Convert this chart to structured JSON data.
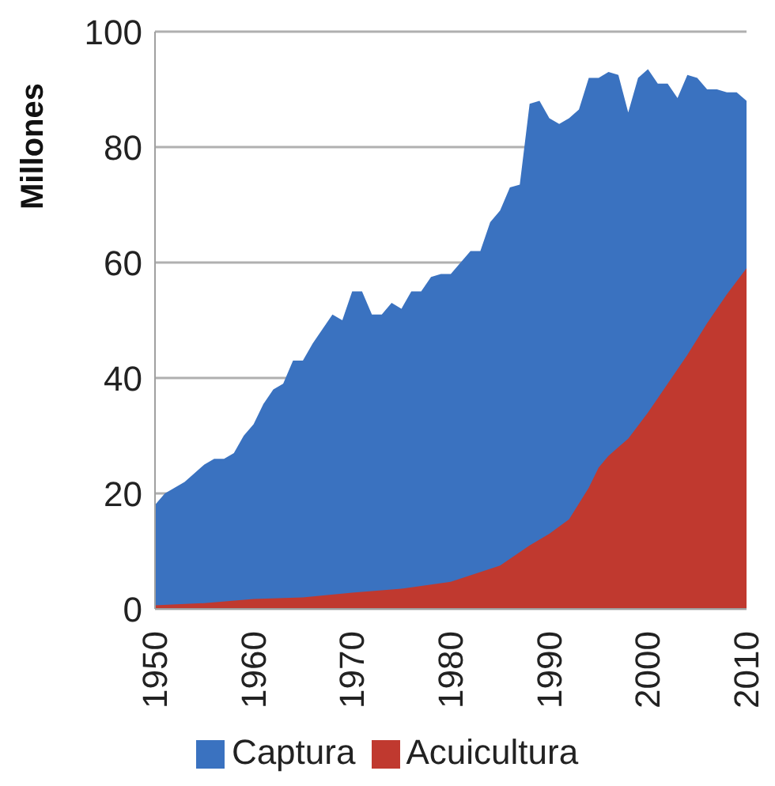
{
  "chart_data": {
    "type": "area",
    "ylabel": "Millones",
    "xlim": [
      1950,
      2010
    ],
    "xticks": [
      1950,
      1960,
      1970,
      1980,
      1990,
      2000,
      2010
    ],
    "ylim": [
      0,
      100
    ],
    "yticks": [
      0,
      20,
      40,
      60,
      80,
      100
    ],
    "grid": "y",
    "legend": "bottom",
    "series": [
      {
        "name": "Captura",
        "color": "#3a72c0",
        "x": [
          1950,
          1951,
          1952,
          1953,
          1954,
          1955,
          1956,
          1957,
          1958,
          1959,
          1960,
          1961,
          1962,
          1963,
          1964,
          1965,
          1966,
          1967,
          1968,
          1969,
          1970,
          1971,
          1972,
          1973,
          1974,
          1975,
          1976,
          1977,
          1978,
          1979,
          1980,
          1981,
          1982,
          1983,
          1984,
          1985,
          1986,
          1987,
          1988,
          1989,
          1990,
          1991,
          1992,
          1993,
          1994,
          1995,
          1996,
          1997,
          1998,
          1999,
          2000,
          2001,
          2002,
          2003,
          2004,
          2005,
          2006,
          2007,
          2008,
          2009,
          2010
        ],
        "values": [
          18,
          20,
          21,
          22,
          23.5,
          25,
          26,
          26,
          27,
          30,
          32,
          35.5,
          38,
          39,
          43,
          43,
          46,
          48.5,
          51,
          50,
          55,
          55,
          51,
          51,
          53,
          52,
          55,
          55,
          57.5,
          58,
          58,
          60,
          62,
          62,
          67,
          69,
          73,
          73.5,
          87.5,
          88,
          85,
          84,
          85,
          86.5,
          92,
          92,
          93,
          92.5,
          86,
          92,
          93.5,
          91,
          91,
          88.5,
          92.5,
          92,
          90,
          90,
          89.5,
          89.5,
          88
        ]
      },
      {
        "name": "Acuicultura",
        "color": "#c0392f",
        "x": [
          1950,
          1955,
          1960,
          1965,
          1970,
          1975,
          1980,
          1985,
          1988,
          1990,
          1992,
          1994,
          1995,
          1996,
          1997,
          1998,
          2000,
          2002,
          2004,
          2006,
          2008,
          2010
        ],
        "values": [
          0.6,
          1,
          1.7,
          2,
          2.8,
          3.5,
          4.7,
          7.5,
          11,
          13,
          15.5,
          21,
          24.5,
          26.5,
          28,
          29.5,
          34,
          39,
          44,
          49.5,
          54.5,
          59
        ]
      }
    ]
  }
}
